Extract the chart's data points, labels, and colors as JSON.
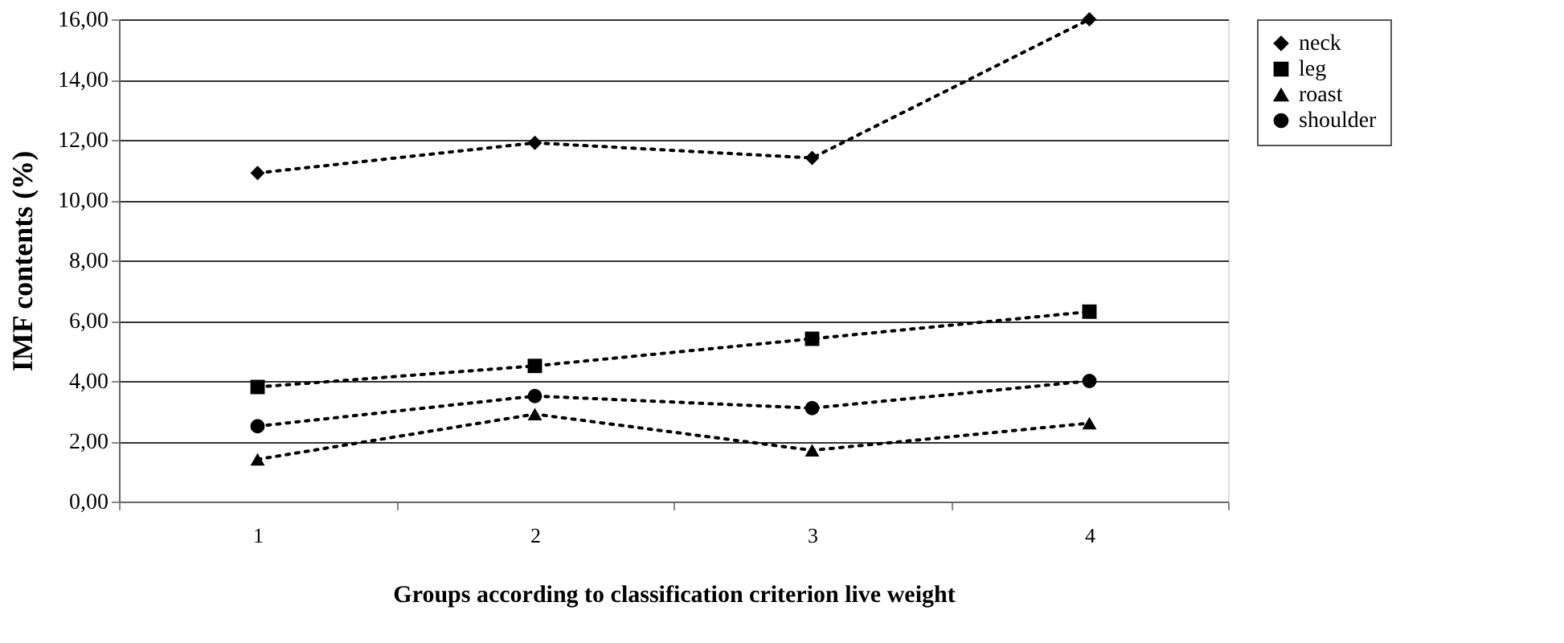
{
  "chart_data": {
    "type": "line",
    "xlabel": "Groups according to classification criterion live weight",
    "ylabel": "IMF contents (%)",
    "categories": [
      "1",
      "2",
      "3",
      "4"
    ],
    "series": [
      {
        "name": "neck",
        "color": "#000000",
        "marker": "diamond",
        "values": [
          10.9,
          11.9,
          11.4,
          16.0
        ]
      },
      {
        "name": "leg",
        "color": "#000000",
        "marker": "square",
        "values": [
          3.8,
          4.5,
          5.4,
          6.3
        ]
      },
      {
        "name": "roast",
        "color": "#000000",
        "marker": "triangle",
        "values": [
          1.4,
          2.9,
          1.7,
          2.6
        ]
      },
      {
        "name": "shoulder",
        "color": "#000000",
        "marker": "circle",
        "values": [
          2.5,
          3.5,
          3.1,
          4.0
        ]
      }
    ],
    "ylim": [
      0,
      16
    ],
    "yticks": [
      {
        "value": 0,
        "label": "0,00"
      },
      {
        "value": 2,
        "label": "2,00"
      },
      {
        "value": 4,
        "label": "4,00"
      },
      {
        "value": 6,
        "label": "6,00"
      },
      {
        "value": 8,
        "label": "8,00"
      },
      {
        "value": 10,
        "label": "10,00"
      },
      {
        "value": 12,
        "label": "12,00"
      },
      {
        "value": 14,
        "label": "14,00"
      },
      {
        "value": 16,
        "label": "16,00"
      }
    ],
    "grid": "y",
    "legend": "right",
    "line_style": "dotted"
  }
}
